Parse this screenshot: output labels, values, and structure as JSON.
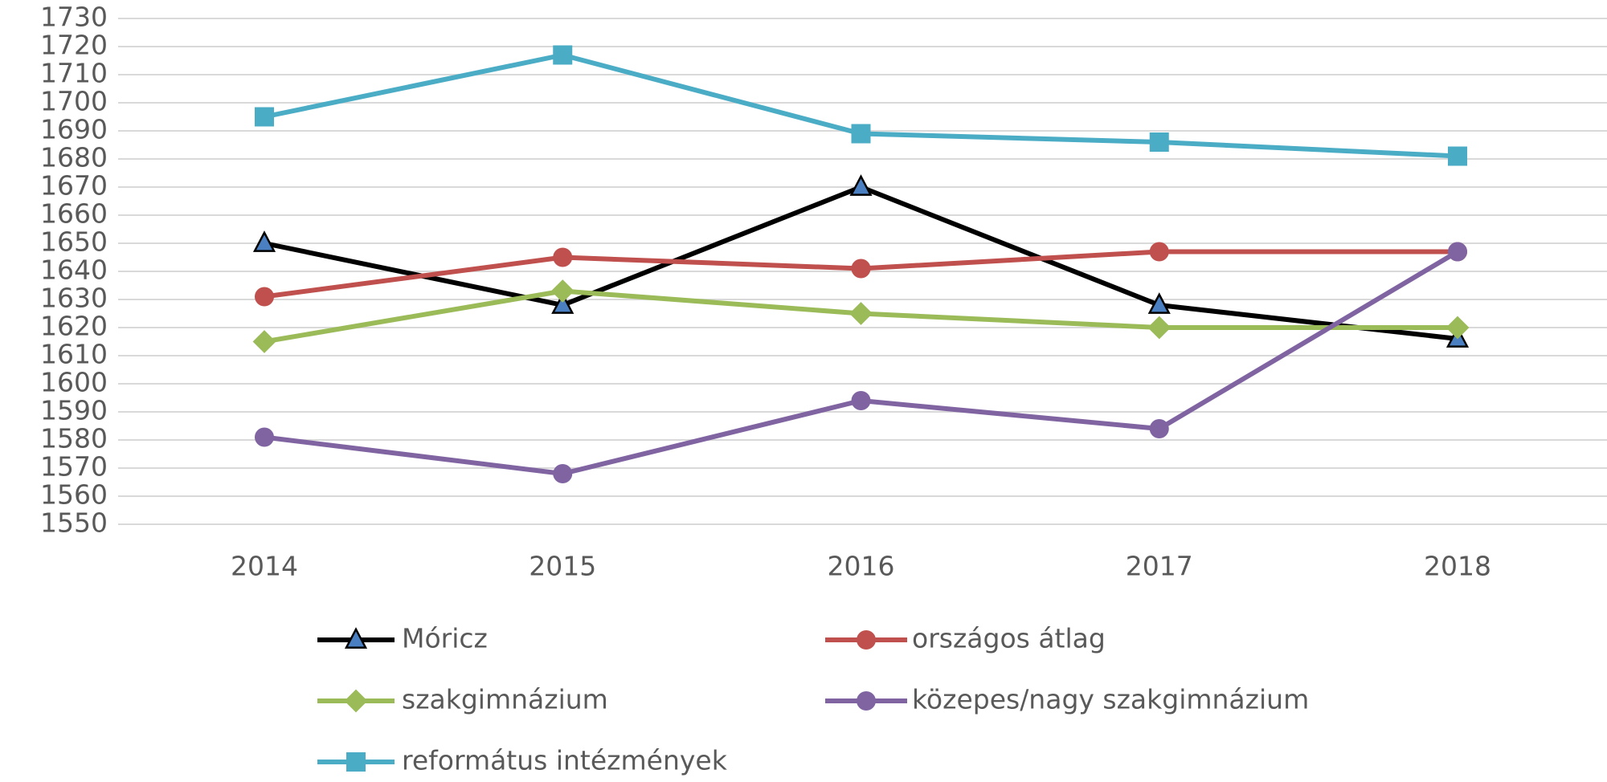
{
  "chart_data": {
    "type": "line",
    "categories": [
      "2014",
      "2015",
      "2016",
      "2017",
      "2018"
    ],
    "series": [
      {
        "name": "Móricz",
        "color": "#000000",
        "marker": "triangle",
        "marker_color": "#4a7fc1",
        "values": [
          1650,
          1628,
          1670,
          1628,
          1616
        ]
      },
      {
        "name": "országos átlag",
        "color": "#c0504d",
        "marker": "circle",
        "values": [
          1631,
          1645,
          1641,
          1647,
          1647
        ]
      },
      {
        "name": "szakgimnázium",
        "color": "#9bbb59",
        "marker": "diamond",
        "values": [
          1615,
          1633,
          1625,
          1620,
          1620
        ]
      },
      {
        "name": "közepes/nagy szakgimnázium",
        "color": "#8064a2",
        "marker": "circle",
        "values": [
          1581,
          1568,
          1594,
          1584,
          1647
        ]
      },
      {
        "name": "református intézmények",
        "color": "#4bacc6",
        "marker": "square",
        "values": [
          1695,
          1717,
          1689,
          1686,
          1681
        ]
      }
    ],
    "ylim": [
      1550,
      1730
    ],
    "yticks": [
      1550,
      1560,
      1570,
      1580,
      1590,
      1600,
      1610,
      1620,
      1630,
      1640,
      1650,
      1660,
      1670,
      1680,
      1690,
      1700,
      1710,
      1720,
      1730
    ],
    "grid": true,
    "legend": "bottom"
  }
}
